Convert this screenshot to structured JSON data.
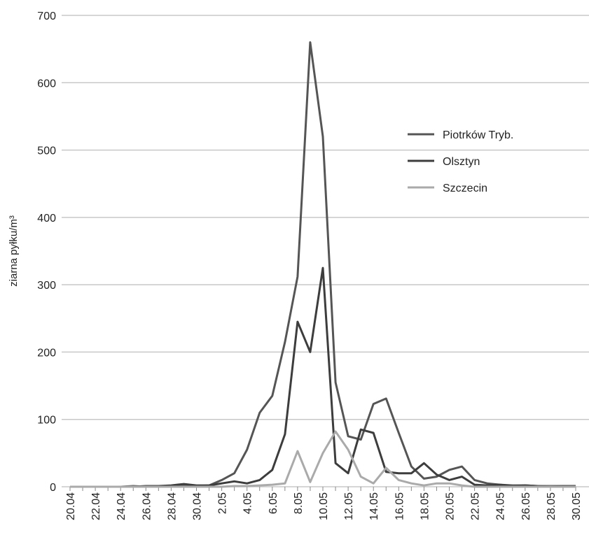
{
  "chart_data": {
    "type": "line",
    "y_label": "ziarna pyłku/m³",
    "categories": [
      "20.04",
      null,
      "22.04",
      null,
      "24.04",
      null,
      "26.04",
      null,
      "28.04",
      null,
      "30.04",
      null,
      "2.05",
      null,
      "4.05",
      null,
      "6.05",
      null,
      "8.05",
      null,
      "10.05",
      null,
      "12.05",
      null,
      "14.05",
      null,
      "16.05",
      null,
      "18.05",
      null,
      "20.05",
      null,
      "22.05",
      null,
      "24.05",
      null,
      "26.05",
      null,
      "28.05",
      null,
      "30.05"
    ],
    "series": [
      {
        "name": "Piotrków Tryb.",
        "color": "#555555",
        "values": [
          0,
          0,
          0,
          0,
          0,
          1,
          0,
          1,
          1,
          3,
          1,
          2,
          10,
          20,
          55,
          110,
          135,
          215,
          312,
          660,
          520,
          155,
          75,
          70,
          123,
          131,
          80,
          30,
          12,
          15,
          25,
          30,
          10,
          5,
          3,
          2,
          2,
          1,
          1,
          1,
          0
        ]
      },
      {
        "name": "Olsztyn",
        "color": "#3d3d3d",
        "values": [
          0,
          0,
          0,
          0,
          0,
          0,
          1,
          1,
          2,
          4,
          2,
          2,
          5,
          8,
          5,
          10,
          25,
          78,
          245,
          200,
          325,
          35,
          20,
          85,
          80,
          22,
          20,
          20,
          35,
          18,
          10,
          15,
          3,
          2,
          3,
          1,
          2,
          1,
          0,
          1,
          1
        ]
      },
      {
        "name": "Szczecin",
        "color": "#aaaaaa",
        "values": [
          0,
          0,
          0,
          0,
          0,
          0,
          0,
          0,
          0,
          0,
          0,
          0,
          0,
          1,
          1,
          2,
          3,
          5,
          53,
          7,
          50,
          82,
          55,
          15,
          5,
          28,
          10,
          5,
          2,
          5,
          5,
          2,
          0,
          0,
          0,
          0,
          0,
          0,
          0,
          0,
          0
        ]
      }
    ],
    "ylim": [
      0,
      700
    ],
    "yticks": [
      0,
      100,
      200,
      300,
      400,
      500,
      600,
      700
    ],
    "grid": true
  }
}
